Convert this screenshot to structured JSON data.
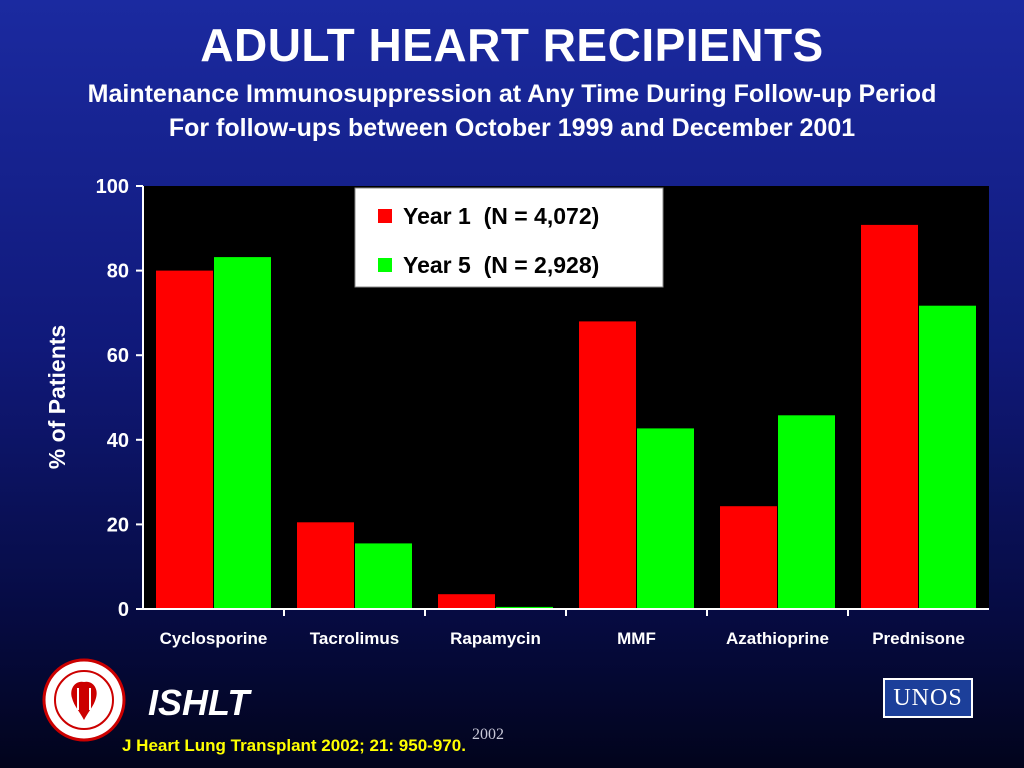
{
  "header": {
    "title": "ADULT HEART RECIPIENTS",
    "subtitle_1": "Maintenance Immunosuppression at Any Time During Follow-up Period",
    "subtitle_2": "For follow-ups between October 1999 and December 2001"
  },
  "colors": {
    "year1": "#ff0000",
    "year5": "#00ff00",
    "plot_bg": "#000000",
    "citation": "#ffff00"
  },
  "chart_data": {
    "type": "bar",
    "categories": [
      "Cyclosporine",
      "Tacrolimus",
      "Rapamycin",
      "MMF",
      "Azathioprine",
      "Prednisone"
    ],
    "series": [
      {
        "name": "Year 1  (N = 4,072)",
        "values": [
          80,
          20.5,
          3.5,
          68,
          24.3,
          90.8
        ]
      },
      {
        "name": "Year 5  (N = 2,928)",
        "values": [
          83.2,
          15.5,
          0.5,
          42.7,
          45.8,
          71.7
        ]
      }
    ],
    "ylabel": "% of Patients",
    "ylim": [
      0,
      100
    ],
    "yticks": [
      "0",
      "20",
      "40",
      "60",
      "80",
      "100"
    ],
    "grid": false,
    "legend_position": "top-center"
  },
  "footer": {
    "org": "ISHLT",
    "year": "2002",
    "citation": "J Heart Lung Transplant 2002; 21: 950-970.",
    "unos_logo": "UNOS",
    "ishlt_logo_icon": "ishlt-seal-icon"
  }
}
